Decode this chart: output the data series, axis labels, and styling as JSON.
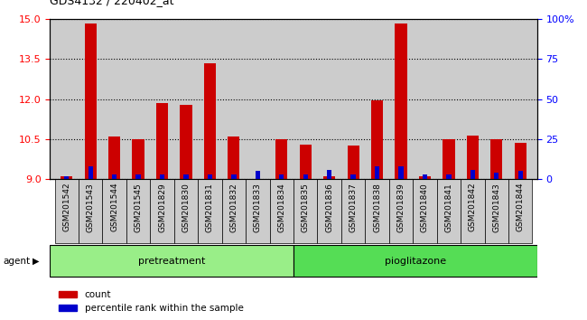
{
  "title": "GDS4132 / 220402_at",
  "samples": [
    "GSM201542",
    "GSM201543",
    "GSM201544",
    "GSM201545",
    "GSM201829",
    "GSM201830",
    "GSM201831",
    "GSM201832",
    "GSM201833",
    "GSM201834",
    "GSM201835",
    "GSM201836",
    "GSM201837",
    "GSM201838",
    "GSM201839",
    "GSM201840",
    "GSM201841",
    "GSM201842",
    "GSM201843",
    "GSM201844"
  ],
  "count_values": [
    9.1,
    14.85,
    10.6,
    10.5,
    11.85,
    11.8,
    13.35,
    10.6,
    9.0,
    10.5,
    10.3,
    9.1,
    10.25,
    11.95,
    14.85,
    9.1,
    10.5,
    10.65,
    10.5,
    10.35
  ],
  "percentile_values": [
    2,
    8,
    3,
    3,
    3,
    3,
    3,
    3,
    5,
    3,
    3,
    6,
    3,
    8,
    8,
    3,
    3,
    6,
    4,
    5
  ],
  "pretreatment_count": 10,
  "pioglitazone_count": 10,
  "ylim_left": [
    9,
    15
  ],
  "ylim_right": [
    0,
    100
  ],
  "yticks_left": [
    9,
    10.5,
    12,
    13.5,
    15
  ],
  "yticks_right": [
    0,
    25,
    50,
    75,
    100
  ],
  "bar_color_red": "#cc0000",
  "bar_color_blue": "#0000cc",
  "pretreatment_color": "#99ee88",
  "pioglitazone_color": "#55dd55",
  "bg_plot": "#cccccc",
  "bg_sample_box": "#cccccc"
}
